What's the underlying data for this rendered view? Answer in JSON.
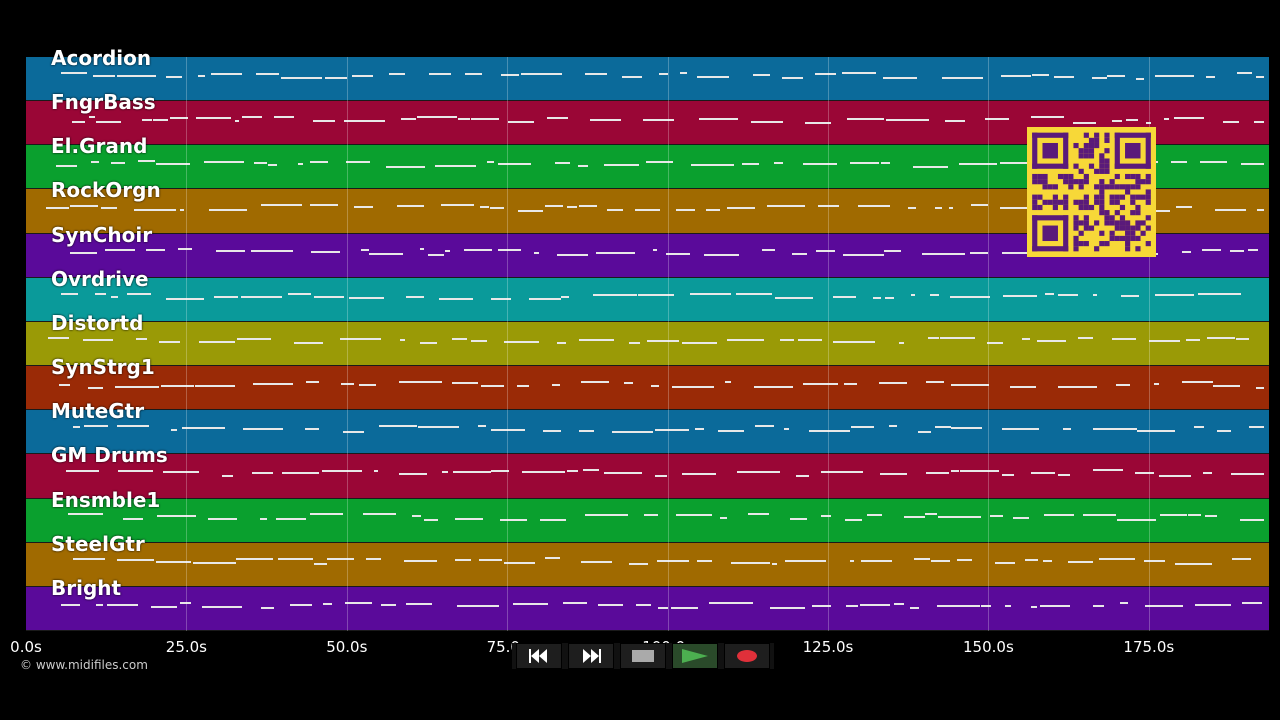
{
  "tracks": [
    {
      "name": "Acordion",
      "color": "#0b6a9a"
    },
    {
      "name": "FngrBass",
      "color": "#9a0636"
    },
    {
      "name": "El.Grand",
      "color": "#0aa02e"
    },
    {
      "name": "RockOrgn",
      "color": "#a06a00"
    },
    {
      "name": "SynChoir",
      "color": "#5a0a9a"
    },
    {
      "name": "Ovrdrive",
      "color": "#0a9a9a"
    },
    {
      "name": "Distortd",
      "color": "#9a9a06"
    },
    {
      "name": "SynStrg1",
      "color": "#9a2a06"
    },
    {
      "name": "MuteGtr",
      "color": "#0b6a9a"
    },
    {
      "name": "GM Drums",
      "color": "#9a0636"
    },
    {
      "name": "Ensmble1",
      "color": "#0aa02e"
    },
    {
      "name": "SteelGtr",
      "color": "#a06a00"
    },
    {
      "name": "Bright",
      "color": "#5a0a9a"
    }
  ],
  "axis": {
    "ticks": [
      "0.0s",
      "25.0s",
      "50.0s",
      "75.0s",
      "100.0s",
      "125.0s",
      "150.0s",
      "175.0s"
    ]
  },
  "copyright": "© www.midifiles.com",
  "transport": {
    "buttons": [
      "rewind-icon",
      "fast-forward-icon",
      "stop-icon",
      "play-icon",
      "record-icon"
    ],
    "play_color": "#4caf50",
    "record_color": "#e0303a",
    "stop_color": "#aaaaaa"
  },
  "qr_color": "#f7d838",
  "qr_fg": "#5a1a7a"
}
